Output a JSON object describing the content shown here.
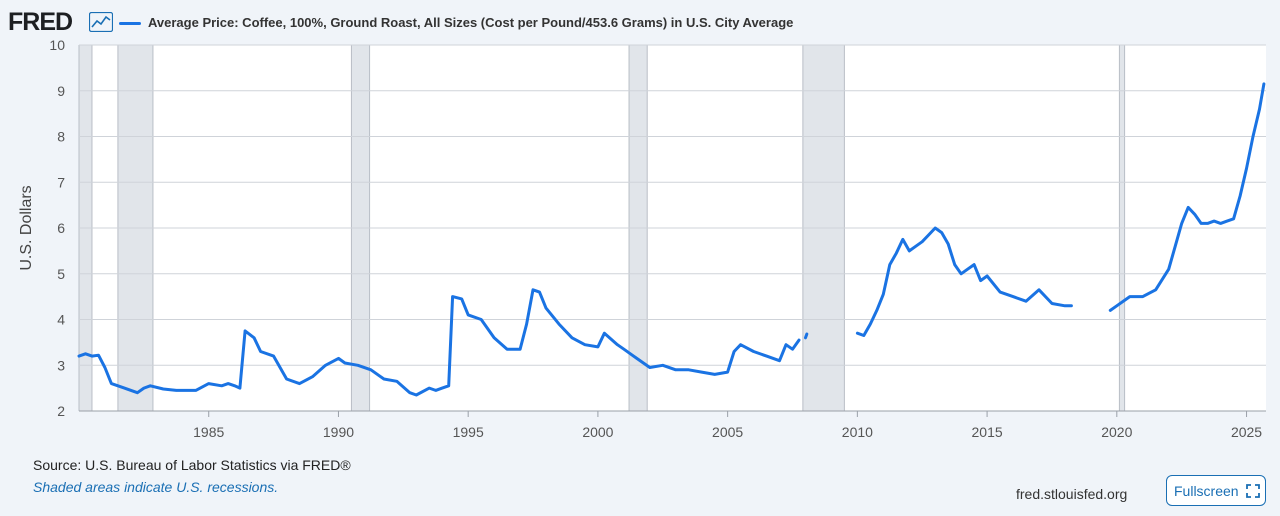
{
  "header": {
    "logo_text": "FRED",
    "logo_icon": "line-graph-icon"
  },
  "colors": {
    "series": "#1a73e3",
    "recession_shade": "#e1e5ea",
    "gridline": "#cfd3d9",
    "plot_background": "#ffffff",
    "page_background": "#f0f4f9",
    "link": "#1a6fb4"
  },
  "footer": {
    "source": "Source: U.S. Bureau of Labor Statistics via FRED®",
    "recession_note": "Shaded areas indicate U.S. recessions.",
    "site": "fred.stlouisfed.org",
    "fullscreen_label": "Fullscreen",
    "fullscreen_icon": "expand-icon"
  },
  "chart_data": {
    "type": "line",
    "title": "",
    "xlabel": "",
    "ylabel": "U.S. Dollars",
    "xlim": [
      1980.0,
      2025.75
    ],
    "ylim": [
      2,
      10
    ],
    "x_ticks": [
      1985,
      1990,
      1995,
      2000,
      2005,
      2010,
      2015,
      2020,
      2025
    ],
    "y_ticks": [
      2,
      3,
      4,
      5,
      6,
      7,
      8,
      9,
      10
    ],
    "grid": "horizontal",
    "recessions": [
      [
        1980.0,
        1980.5
      ],
      [
        1981.5,
        1982.85
      ],
      [
        1990.5,
        1991.2
      ],
      [
        2001.2,
        2001.9
      ],
      [
        2007.9,
        2009.5
      ],
      [
        2020.1,
        2020.3
      ]
    ],
    "series": [
      {
        "name": "Average Price: Coffee, 100%, Ground Roast, All Sizes (Cost per Pound/453.6 Grams) in U.S. City Average",
        "segments": [
          [
            [
              1980.0,
              3.2
            ],
            [
              1980.25,
              3.25
            ],
            [
              1980.5,
              3.2
            ],
            [
              1980.75,
              3.22
            ],
            [
              1981.0,
              2.95
            ],
            [
              1981.25,
              2.6
            ],
            [
              1981.75,
              2.5
            ],
            [
              1982.25,
              2.4
            ],
            [
              1982.5,
              2.5
            ],
            [
              1982.75,
              2.55
            ],
            [
              1983.25,
              2.48
            ],
            [
              1983.75,
              2.45
            ],
            [
              1984.5,
              2.45
            ],
            [
              1985.0,
              2.6
            ],
            [
              1985.5,
              2.55
            ],
            [
              1985.75,
              2.6
            ],
            [
              1986.0,
              2.55
            ],
            [
              1986.2,
              2.5
            ],
            [
              1986.4,
              3.75
            ],
            [
              1986.75,
              3.6
            ],
            [
              1987.0,
              3.3
            ],
            [
              1987.5,
              3.2
            ],
            [
              1988.0,
              2.7
            ],
            [
              1988.5,
              2.6
            ],
            [
              1989.0,
              2.75
            ],
            [
              1989.5,
              3.0
            ],
            [
              1990.0,
              3.15
            ],
            [
              1990.25,
              3.05
            ],
            [
              1990.75,
              3.0
            ],
            [
              1991.25,
              2.9
            ],
            [
              1991.75,
              2.7
            ],
            [
              1992.25,
              2.65
            ],
            [
              1992.75,
              2.4
            ],
            [
              1993.0,
              2.35
            ],
            [
              1993.5,
              2.5
            ],
            [
              1993.75,
              2.45
            ],
            [
              1994.0,
              2.5
            ],
            [
              1994.25,
              2.55
            ],
            [
              1994.4,
              4.5
            ],
            [
              1994.75,
              4.45
            ],
            [
              1995.0,
              4.1
            ],
            [
              1995.5,
              4.0
            ],
            [
              1996.0,
              3.6
            ],
            [
              1996.5,
              3.35
            ],
            [
              1997.0,
              3.35
            ],
            [
              1997.25,
              3.9
            ],
            [
              1997.5,
              4.65
            ],
            [
              1997.75,
              4.6
            ],
            [
              1998.0,
              4.25
            ],
            [
              1998.5,
              3.9
            ],
            [
              1999.0,
              3.6
            ],
            [
              1999.5,
              3.45
            ],
            [
              2000.0,
              3.4
            ],
            [
              2000.25,
              3.7
            ],
            [
              2000.75,
              3.45
            ],
            [
              2001.0,
              3.35
            ],
            [
              2001.5,
              3.15
            ],
            [
              2002.0,
              2.95
            ],
            [
              2002.5,
              3.0
            ],
            [
              2003.0,
              2.9
            ],
            [
              2003.5,
              2.9
            ],
            [
              2004.0,
              2.85
            ],
            [
              2004.5,
              2.8
            ],
            [
              2005.0,
              2.85
            ],
            [
              2005.25,
              3.3
            ],
            [
              2005.5,
              3.45
            ],
            [
              2006.0,
              3.3
            ],
            [
              2006.5,
              3.2
            ],
            [
              2007.0,
              3.1
            ],
            [
              2007.25,
              3.45
            ],
            [
              2007.5,
              3.35
            ],
            [
              2007.75,
              3.55
            ]
          ],
          [
            [
              2008.0,
              3.6
            ],
            [
              2008.05,
              3.68
            ]
          ],
          [
            [
              2010.0,
              3.7
            ],
            [
              2010.25,
              3.65
            ],
            [
              2010.5,
              3.9
            ],
            [
              2010.75,
              4.2
            ],
            [
              2011.0,
              4.55
            ],
            [
              2011.25,
              5.2
            ],
            [
              2011.5,
              5.45
            ],
            [
              2011.75,
              5.75
            ],
            [
              2012.0,
              5.5
            ],
            [
              2012.25,
              5.6
            ],
            [
              2012.5,
              5.7
            ],
            [
              2012.75,
              5.85
            ],
            [
              2013.0,
              6.0
            ],
            [
              2013.25,
              5.9
            ],
            [
              2013.5,
              5.65
            ],
            [
              2013.75,
              5.2
            ],
            [
              2014.0,
              5.0
            ],
            [
              2014.25,
              5.1
            ],
            [
              2014.5,
              5.2
            ],
            [
              2014.75,
              4.85
            ],
            [
              2015.0,
              4.95
            ],
            [
              2015.5,
              4.6
            ],
            [
              2016.0,
              4.5
            ],
            [
              2016.5,
              4.4
            ],
            [
              2017.0,
              4.65
            ],
            [
              2017.5,
              4.35
            ],
            [
              2018.0,
              4.3
            ],
            [
              2018.25,
              4.3
            ]
          ],
          [
            [
              2019.75,
              4.2
            ],
            [
              2020.0,
              4.3
            ],
            [
              2020.5,
              4.5
            ],
            [
              2021.0,
              4.5
            ],
            [
              2021.5,
              4.65
            ],
            [
              2022.0,
              5.1
            ],
            [
              2022.25,
              5.6
            ],
            [
              2022.5,
              6.1
            ],
            [
              2022.75,
              6.45
            ],
            [
              2023.0,
              6.3
            ],
            [
              2023.25,
              6.1
            ],
            [
              2023.5,
              6.1
            ],
            [
              2023.75,
              6.15
            ],
            [
              2024.0,
              6.1
            ],
            [
              2024.25,
              6.15
            ],
            [
              2024.5,
              6.2
            ],
            [
              2024.75,
              6.7
            ],
            [
              2025.0,
              7.3
            ],
            [
              2025.25,
              8.0
            ],
            [
              2025.5,
              8.6
            ],
            [
              2025.67,
              9.15
            ]
          ]
        ]
      }
    ]
  }
}
